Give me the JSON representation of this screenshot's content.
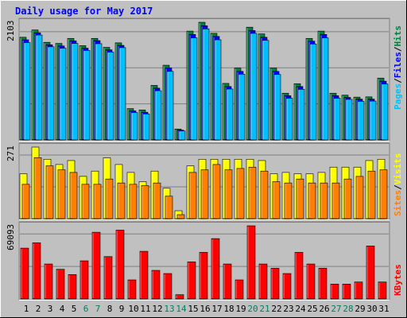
{
  "chart_data": [
    {
      "type": "bar",
      "title": "Daily usage for May 2017",
      "categories": [
        "1",
        "2",
        "3",
        "4",
        "5",
        "6",
        "7",
        "8",
        "9",
        "10",
        "11",
        "12",
        "13",
        "14",
        "15",
        "16",
        "17",
        "18",
        "19",
        "20",
        "21",
        "22",
        "23",
        "24",
        "25",
        "26",
        "27",
        "28",
        "29",
        "30",
        "31"
      ],
      "weekend_days": [
        "6",
        "7",
        "13",
        "14",
        "20",
        "21",
        "27",
        "28"
      ],
      "ymax_label": "2103",
      "ymax": 2103,
      "series": [
        {
          "name": "Hits",
          "color": "#008040",
          "values": [
            1835,
            1965,
            1745,
            1725,
            1815,
            1685,
            1815,
            1655,
            1735,
            560,
            535,
            975,
            1335,
            195,
            1945,
            2103,
            1905,
            1010,
            1285,
            2015,
            1895,
            1285,
            835,
            1005,
            1815,
            1945,
            835,
            800,
            765,
            770,
            1105
          ]
        },
        {
          "name": "Files",
          "color": "#0000ff",
          "values": [
            1790,
            1915,
            1700,
            1680,
            1770,
            1640,
            1775,
            1610,
            1690,
            520,
            495,
            925,
            1285,
            175,
            1885,
            2040,
            1850,
            955,
            1225,
            1955,
            1835,
            1225,
            790,
            955,
            1765,
            1885,
            790,
            760,
            730,
            730,
            1050
          ]
        },
        {
          "name": "Pages",
          "color": "#00bfff",
          "values": [
            1740,
            1875,
            1665,
            1640,
            1725,
            1600,
            1720,
            1570,
            1650,
            490,
            465,
            880,
            1225,
            160,
            1825,
            1985,
            1790,
            910,
            1175,
            1905,
            1780,
            1170,
            745,
            905,
            1715,
            1825,
            745,
            725,
            690,
            695,
            1000
          ]
        }
      ],
      "legend": [
        "Pages",
        "Files",
        "Hits"
      ]
    },
    {
      "type": "bar",
      "categories": [
        "1",
        "2",
        "3",
        "4",
        "5",
        "6",
        "7",
        "8",
        "9",
        "10",
        "11",
        "12",
        "13",
        "14",
        "15",
        "16",
        "17",
        "18",
        "19",
        "20",
        "21",
        "22",
        "23",
        "24",
        "25",
        "26",
        "27",
        "28",
        "29",
        "30",
        "31"
      ],
      "ymax_label": "271",
      "ymax": 271,
      "series": [
        {
          "name": "Visits",
          "color": "#ffff00",
          "values": [
            170,
            271,
            225,
            205,
            220,
            160,
            180,
            230,
            205,
            175,
            140,
            180,
            115,
            30,
            200,
            225,
            225,
            225,
            225,
            225,
            220,
            170,
            175,
            170,
            170,
            175,
            195,
            195,
            195,
            220,
            225
          ]
        },
        {
          "name": "Sites",
          "color": "#ff8000",
          "values": [
            130,
            231,
            200,
            185,
            175,
            130,
            130,
            150,
            135,
            130,
            125,
            135,
            85,
            15,
            175,
            185,
            205,
            185,
            190,
            195,
            180,
            140,
            135,
            150,
            135,
            135,
            135,
            150,
            160,
            180,
            185
          ]
        }
      ],
      "legend": [
        "Sites",
        "Visits"
      ]
    },
    {
      "type": "bar",
      "categories": [
        "1",
        "2",
        "3",
        "4",
        "5",
        "6",
        "7",
        "8",
        "9",
        "10",
        "11",
        "12",
        "13",
        "14",
        "15",
        "16",
        "17",
        "18",
        "19",
        "20",
        "21",
        "22",
        "23",
        "24",
        "25",
        "26",
        "27",
        "28",
        "29",
        "30",
        "31"
      ],
      "ymax_label": "69093",
      "ymax": 69093,
      "series": [
        {
          "name": "KBytes",
          "color": "#ff0000",
          "values": [
            48000,
            53000,
            33000,
            28000,
            23000,
            36000,
            63000,
            40000,
            65000,
            18000,
            45000,
            27000,
            24000,
            4000,
            35000,
            44000,
            57000,
            33000,
            18000,
            69093,
            33000,
            29000,
            24000,
            44000,
            33000,
            29000,
            14000,
            14000,
            16000,
            50000,
            16000
          ]
        }
      ],
      "legend": [
        "KBytes"
      ]
    }
  ],
  "colors": {
    "background": "#c0c0c0",
    "title": "#0000ff",
    "label_weekday": "#000000",
    "label_weekend": "#00805c",
    "gridline": "#808080",
    "legend_sep": "#000000"
  }
}
